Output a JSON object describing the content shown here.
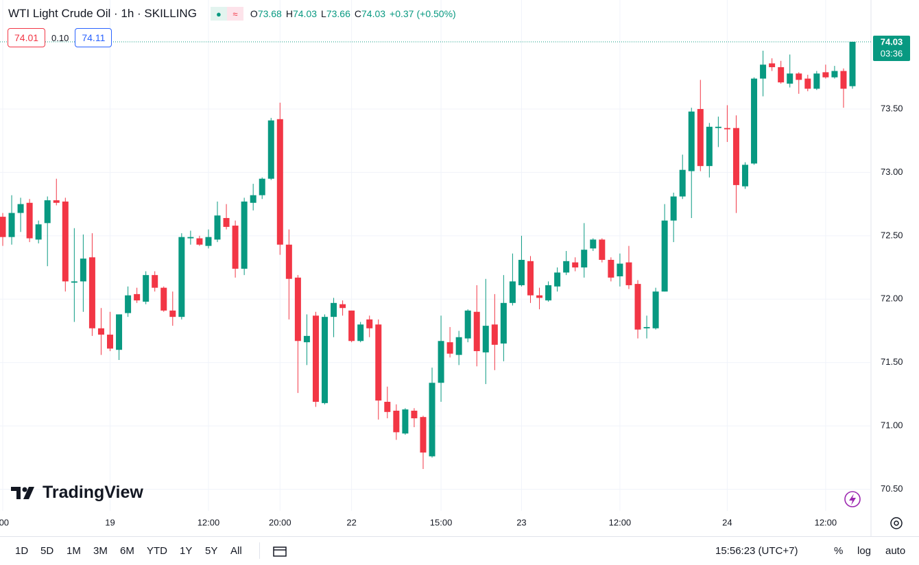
{
  "chart_data": {
    "type": "candlestick",
    "title": "WTI Light Crude Oil · 1h · SKILLING",
    "ohlc_legend": [
      {
        "key": "O",
        "value": 73.68
      },
      {
        "key": "H",
        "value": 74.03
      },
      {
        "key": "L",
        "value": 73.66
      },
      {
        "key": "C",
        "value": 74.03
      }
    ],
    "change": "+0.37",
    "change_pct": "(+0.50%)",
    "categories": [
      ":00",
      null,
      null,
      null,
      null,
      null,
      null,
      null,
      null,
      null,
      null,
      null,
      "19",
      null,
      null,
      null,
      null,
      null,
      null,
      null,
      null,
      null,
      null,
      "12:00",
      null,
      null,
      null,
      null,
      null,
      null,
      null,
      "20:00",
      null,
      null,
      null,
      null,
      null,
      null,
      null,
      "22",
      null,
      null,
      null,
      null,
      null,
      null,
      null,
      null,
      null,
      "15:00",
      null,
      null,
      null,
      null,
      null,
      null,
      null,
      null,
      "23",
      null,
      null,
      null,
      null,
      null,
      null,
      null,
      null,
      null,
      null,
      "12:00",
      null,
      null,
      null,
      null,
      null,
      null,
      null,
      null,
      null,
      null,
      null,
      "24",
      null,
      null,
      null,
      null,
      null,
      null,
      null,
      null,
      null,
      null,
      "12:00",
      null,
      null,
      null
    ],
    "open": [
      72.65,
      72.49,
      72.68,
      72.76,
      72.47,
      72.6,
      72.78,
      72.77,
      72.13,
      72.14,
      72.33,
      71.77,
      71.72,
      71.6,
      71.89,
      72.04,
      71.98,
      72.19,
      72.09,
      71.91,
      71.86,
      72.48,
      72.48,
      72.42,
      72.47,
      72.64,
      72.58,
      72.24,
      72.76,
      72.82,
      72.95,
      73.42,
      72.43,
      72.17,
      71.66,
      71.87,
      71.18,
      71.86,
      71.96,
      71.91,
      71.67,
      71.84,
      71.8,
      71.19,
      71.12,
      70.94,
      71.12,
      71.07,
      70.76,
      71.34,
      71.66,
      71.56,
      71.69,
      71.9,
      71.58,
      71.8,
      71.65,
      71.97,
      72.11,
      72.3,
      72.03,
      71.99,
      72.1,
      72.21,
      72.29,
      72.25,
      72.4,
      72.47,
      72.31,
      72.18,
      72.29,
      72.12,
      71.77,
      71.77,
      72.06,
      72.62,
      72.81,
      73.01,
      73.5,
      73.05,
      73.35,
      73.35,
      73.35,
      72.89,
      73.07,
      73.74,
      73.86,
      73.83,
      73.7,
      73.78,
      73.74,
      73.66,
      73.79,
      73.75,
      73.8,
      73.68
    ],
    "high": [
      72.68,
      72.82,
      72.8,
      72.79,
      72.62,
      72.81,
      72.95,
      72.8,
      72.56,
      72.51,
      72.52,
      71.93,
      71.9,
      71.88,
      72.1,
      72.09,
      72.22,
      72.22,
      72.1,
      72.06,
      72.52,
      72.54,
      72.5,
      72.55,
      72.77,
      72.75,
      72.62,
      72.8,
      72.91,
      72.96,
      73.43,
      73.55,
      72.55,
      72.19,
      71.88,
      71.9,
      71.88,
      72.01,
      71.99,
      71.91,
      71.82,
      71.87,
      71.84,
      71.31,
      71.17,
      71.14,
      71.14,
      71.08,
      71.46,
      71.87,
      71.78,
      71.75,
      71.92,
      72.11,
      72.16,
      72.04,
      72.19,
      72.36,
      72.5,
      72.34,
      72.09,
      72.14,
      72.25,
      72.38,
      72.33,
      72.6,
      72.48,
      72.48,
      72.33,
      72.36,
      72.42,
      72.15,
      71.87,
      72.09,
      72.75,
      72.84,
      73.14,
      73.51,
      73.73,
      73.39,
      73.44,
      73.53,
      73.45,
      73.08,
      73.75,
      73.96,
      73.9,
      73.88,
      73.93,
      73.79,
      73.77,
      73.8,
      73.85,
      73.84,
      73.82,
      74.03
    ],
    "low": [
      72.42,
      72.43,
      72.53,
      72.45,
      72.44,
      72.26,
      72.74,
      72.06,
      71.82,
      71.9,
      71.71,
      71.56,
      71.59,
      71.52,
      71.86,
      71.97,
      71.96,
      72.06,
      71.9,
      71.79,
      71.84,
      72.43,
      72.42,
      72.4,
      72.45,
      72.55,
      72.17,
      72.19,
      72.7,
      72.79,
      72.94,
      72.35,
      71.84,
      71.26,
      71.48,
      71.15,
      71.17,
      71.7,
      71.87,
      71.66,
      71.66,
      71.7,
      71.05,
      71.06,
      70.89,
      70.93,
      70.99,
      70.66,
      70.75,
      71.19,
      71.54,
      71.48,
      71.66,
      71.47,
      71.33,
      71.44,
      71.51,
      71.95,
      72.1,
      71.97,
      71.92,
      71.98,
      72.06,
      72.19,
      72.22,
      72.17,
      72.38,
      72.29,
      72.14,
      72.1,
      72.08,
      71.69,
      71.69,
      71.76,
      72.06,
      72.45,
      72.79,
      72.64,
      73.01,
      72.96,
      73.2,
      73.24,
      72.68,
      72.87,
      73.06,
      73.6,
      73.8,
      73.7,
      73.67,
      73.62,
      73.64,
      73.65,
      73.74,
      73.74,
      73.51,
      73.66
    ],
    "close": [
      72.49,
      72.68,
      72.75,
      72.48,
      72.59,
      72.78,
      72.76,
      72.14,
      72.14,
      72.32,
      71.77,
      71.72,
      71.61,
      71.88,
      72.03,
      71.99,
      72.19,
      72.09,
      71.91,
      71.86,
      72.49,
      72.49,
      72.43,
      72.49,
      72.66,
      72.57,
      72.24,
      72.77,
      72.82,
      72.95,
      73.41,
      72.43,
      72.16,
      71.67,
      71.71,
      71.19,
      71.86,
      71.97,
      71.93,
      71.67,
      71.8,
      71.77,
      71.2,
      71.11,
      70.95,
      71.13,
      71.06,
      70.79,
      71.34,
      71.67,
      71.57,
      71.7,
      71.91,
      71.59,
      71.79,
      71.64,
      71.97,
      72.14,
      72.31,
      72.03,
      72.01,
      72.11,
      72.21,
      72.3,
      72.25,
      72.39,
      72.47,
      72.31,
      72.17,
      72.28,
      72.11,
      71.76,
      71.78,
      72.06,
      72.62,
      72.81,
      73.02,
      73.48,
      73.05,
      73.36,
      73.36,
      73.34,
      72.9,
      73.06,
      73.74,
      73.85,
      73.83,
      73.71,
      73.78,
      73.73,
      73.66,
      73.78,
      73.75,
      73.8,
      73.66,
      74.03
    ],
    "up_color": "#089981",
    "down_color": "#f23645",
    "ylim": [
      70.33,
      74.36
    ],
    "yticks": [
      {
        "value": 70.5,
        "label": "70.50"
      },
      {
        "value": 71,
        "label": "71.00"
      },
      {
        "value": 71.5,
        "label": "71.50"
      },
      {
        "value": 72,
        "label": "72.00"
      },
      {
        "value": 72.5,
        "label": "72.50"
      },
      {
        "value": 73,
        "label": "73.00"
      },
      {
        "value": 73.5,
        "label": "73.50"
      }
    ],
    "grid": true,
    "last_price": 74.03,
    "countdown": "03:36"
  },
  "quote": {
    "bid": 74.01,
    "spread": "0.10",
    "ask": 74.11
  },
  "watermark": "TradingView",
  "toolbar": {
    "ranges": [
      "1D",
      "5D",
      "1M",
      "3M",
      "6M",
      "YTD",
      "1Y",
      "5Y",
      "All"
    ],
    "clock": "15:56:23 (UTC+7)",
    "percent": "%",
    "log": "log",
    "auto": "auto"
  }
}
